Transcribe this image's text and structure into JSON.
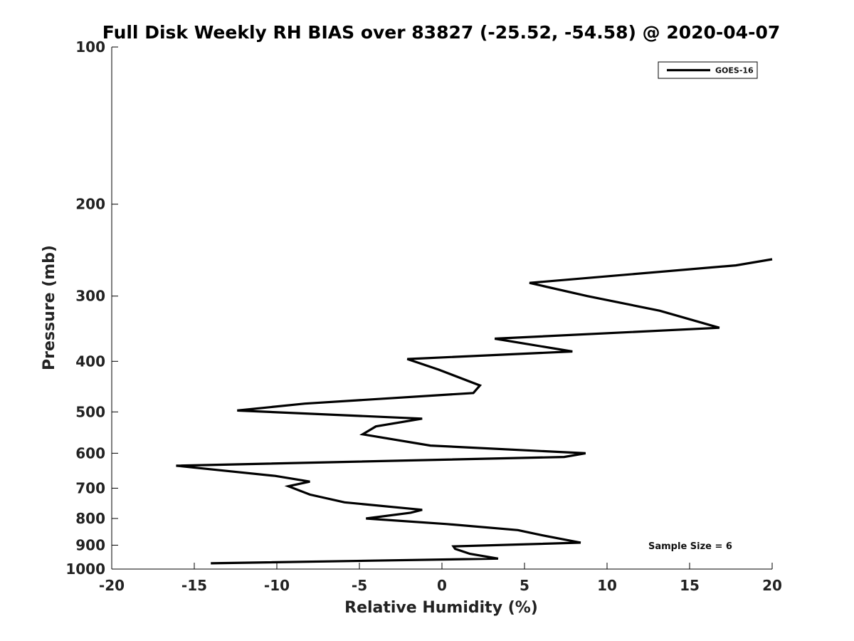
{
  "chart_data": {
    "type": "line",
    "title": "Full Disk Weekly RH BIAS over 83827 (-25.52, -54.58) @ 2020-04-07",
    "xlabel": "Relative Humidity (%)",
    "ylabel": "Pressure (mb)",
    "xlim": [
      -20,
      20
    ],
    "ylim": [
      100,
      1000
    ],
    "y_scale": "log",
    "y_reversed": true,
    "x_ticks": [
      -20,
      -15,
      -10,
      -5,
      0,
      5,
      10,
      15,
      20
    ],
    "x_tick_labels": [
      "-20",
      "-15",
      "-10",
      "-5",
      "0",
      "5",
      "10",
      "15",
      "20"
    ],
    "y_ticks": [
      100,
      200,
      300,
      400,
      500,
      600,
      700,
      800,
      900,
      1000
    ],
    "y_tick_labels": [
      "100",
      "200",
      "300",
      "400",
      "500",
      "600",
      "700",
      "800",
      "900",
      "1000"
    ],
    "grid": false,
    "legend_position": "top-right",
    "series": [
      {
        "name": "GOES-16",
        "color": "#000000",
        "x": [
          20.0,
          17.8,
          5.3,
          8.8,
          13.2,
          16.8,
          3.2,
          7.9,
          -2.1,
          -0.2,
          2.3,
          1.9,
          -8.3,
          -12.4,
          -1.2,
          -4.0,
          -4.8,
          -0.7,
          8.7,
          7.4,
          -16.1,
          -10.1,
          -8.0,
          -9.3,
          -8.0,
          -5.9,
          -1.2,
          -1.9,
          -4.6,
          0.3,
          4.6,
          6.1,
          8.4,
          0.7,
          0.8,
          1.7,
          3.4,
          -14.0
        ],
        "y": [
          255,
          262,
          283,
          300,
          320,
          345,
          362,
          383,
          396,
          415,
          445,
          460,
          482,
          497,
          515,
          533,
          552,
          580,
          600,
          610,
          634,
          663,
          680,
          694,
          720,
          745,
          770,
          780,
          800,
          820,
          842,
          862,
          890,
          905,
          915,
          935,
          955,
          975
        ]
      }
    ]
  },
  "annotation": {
    "text": "Sample Size = 6"
  }
}
